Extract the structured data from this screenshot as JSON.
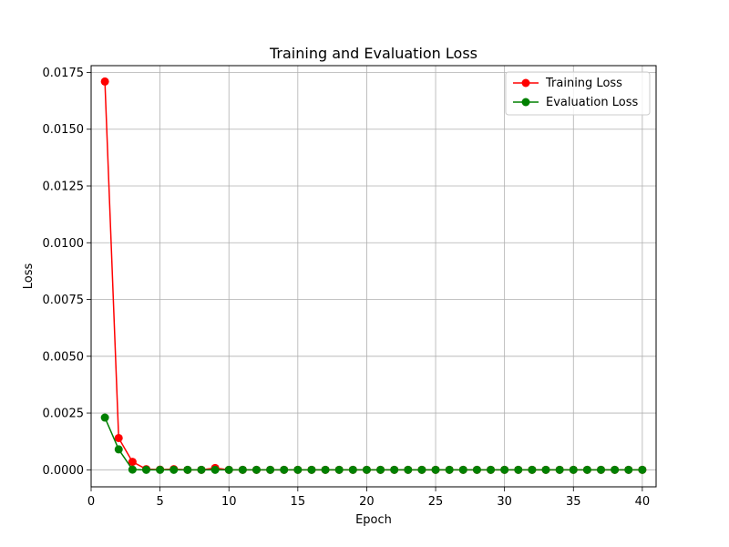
{
  "chart_data": {
    "type": "line",
    "title": "Training and Evaluation Loss",
    "xlabel": "Epoch",
    "ylabel": "Loss",
    "xlim": [
      0,
      41
    ],
    "ylim": [
      -0.00075,
      0.0178
    ],
    "x_ticks": [
      0,
      5,
      10,
      15,
      20,
      25,
      30,
      35,
      40
    ],
    "x_tick_labels": [
      "0",
      "5",
      "10",
      "15",
      "20",
      "25",
      "30",
      "35",
      "40"
    ],
    "y_ticks": [
      0.0,
      0.0025,
      0.005,
      0.0075,
      0.01,
      0.0125,
      0.015,
      0.0175
    ],
    "y_tick_labels": [
      "0.0000",
      "0.0025",
      "0.0050",
      "0.0075",
      "0.0100",
      "0.0125",
      "0.0150",
      "0.0175"
    ],
    "grid": true,
    "legend_position": "top-right",
    "x": [
      1,
      2,
      3,
      4,
      5,
      6,
      7,
      8,
      9,
      10,
      11,
      12,
      13,
      14,
      15,
      16,
      17,
      18,
      19,
      20,
      21,
      22,
      23,
      24,
      25,
      26,
      27,
      28,
      29,
      30,
      31,
      32,
      33,
      34,
      35,
      36,
      37,
      38,
      39,
      40
    ],
    "series": [
      {
        "name": "Training Loss",
        "color": "#ff0000",
        "marker": "circle",
        "values": [
          0.0171,
          0.0014,
          0.00035,
          3e-05,
          1e-05,
          3e-05,
          0.0,
          0.0,
          8e-05,
          0.0,
          0.0,
          0.0,
          0.0,
          0.0,
          0.0,
          0.0,
          0.0,
          0.0,
          0.0,
          0.0,
          0.0,
          0.0,
          0.0,
          0.0,
          0.0,
          0.0,
          0.0,
          0.0,
          0.0,
          0.0,
          0.0,
          0.0,
          0.0,
          0.0,
          0.0,
          0.0,
          0.0,
          0.0,
          0.0,
          0.0
        ]
      },
      {
        "name": "Evaluation Loss",
        "color": "#008000",
        "marker": "circle",
        "values": [
          0.0023,
          0.0009,
          1e-05,
          0.0,
          0.0,
          0.0,
          0.0,
          0.0,
          0.0,
          0.0,
          0.0,
          0.0,
          0.0,
          0.0,
          0.0,
          0.0,
          0.0,
          0.0,
          0.0,
          0.0,
          0.0,
          0.0,
          0.0,
          0.0,
          0.0,
          0.0,
          0.0,
          0.0,
          0.0,
          0.0,
          0.0,
          0.0,
          0.0,
          0.0,
          0.0,
          0.0,
          0.0,
          0.0,
          0.0,
          0.0
        ]
      }
    ]
  }
}
